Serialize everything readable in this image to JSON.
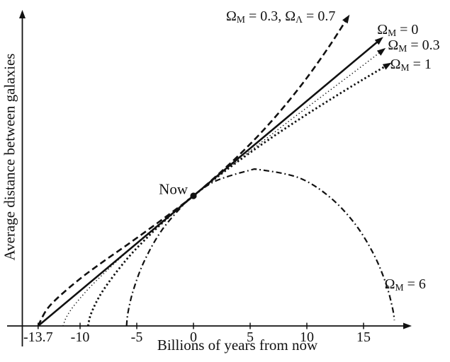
{
  "colors": {
    "ink": "#111111",
    "background": "#ffffff"
  },
  "chart_data": {
    "type": "line",
    "title": "",
    "xlabel": "Billions of years from now",
    "ylabel": "Average distance between galaxies",
    "xlim": [
      -15.1,
      19.4
    ],
    "ylim": [
      0,
      2.45
    ],
    "grid": false,
    "legend_position": "labels-at-curve-ends",
    "x_ticks": [
      {
        "value": -13.7,
        "label": "-13.7"
      },
      {
        "value": -10,
        "label": "-10"
      },
      {
        "value": -5,
        "label": "-5"
      },
      {
        "value": 0,
        "label": "0"
      },
      {
        "value": 5,
        "label": "5"
      },
      {
        "value": 10,
        "label": "10"
      },
      {
        "value": 15,
        "label": "15"
      }
    ],
    "now_marker": {
      "label": "Now",
      "t": 0,
      "a": 1.0,
      "label_anchor": {
        "t": -0.5,
        "a": 1.05,
        "align": "right"
      }
    },
    "series": [
      {
        "id": "lcdm",
        "name": "ΩM = 0.3, ΩΛ = 0.7",
        "label_segments": [
          {
            "t": "Ω"
          },
          {
            "t": "M",
            "sub": true
          },
          {
            "t": " = 0.3, "
          },
          {
            "t": "Ω"
          },
          {
            "t": "Λ",
            "sub": true
          },
          {
            "t": " = 0.7"
          }
        ],
        "style": "dashed",
        "arrow": true,
        "label_anchor": {
          "t": 7.7,
          "a": 2.375,
          "align": "center"
        },
        "points": [
          [
            -13.7,
            0
          ],
          [
            -13,
            0.118
          ],
          [
            -12,
            0.214
          ],
          [
            -10,
            0.363
          ],
          [
            -8,
            0.492
          ],
          [
            -6,
            0.614
          ],
          [
            -4,
            0.739
          ],
          [
            -2,
            0.867
          ],
          [
            0,
            1.0
          ],
          [
            2,
            1.151
          ],
          [
            4,
            1.312
          ],
          [
            6,
            1.489
          ],
          [
            8,
            1.687
          ],
          [
            10,
            1.907
          ],
          [
            12,
            2.153
          ],
          [
            13.6,
            2.37
          ]
        ]
      },
      {
        "id": "omega0",
        "name": "ΩM = 0",
        "label_segments": [
          {
            "t": "Ω"
          },
          {
            "t": "M",
            "sub": true
          },
          {
            "t": " = 0"
          }
        ],
        "style": "solid",
        "arrow": true,
        "label_anchor": {
          "t": 16.2,
          "a": 2.27,
          "align": "left"
        },
        "points": [
          [
            -13.7,
            0
          ],
          [
            16.5,
            2.204
          ]
        ]
      },
      {
        "id": "omega03",
        "name": "ΩM = 0.3",
        "label_segments": [
          {
            "t": "Ω"
          },
          {
            "t": "M",
            "sub": true
          },
          {
            "t": " = 0.3"
          }
        ],
        "style": "dotted-fine",
        "arrow": true,
        "label_anchor": {
          "t": 17.15,
          "a": 2.15,
          "align": "left"
        },
        "points": [
          [
            -11.5,
            0
          ],
          [
            -11.18,
            0.072
          ],
          [
            -10.37,
            0.174
          ],
          [
            -8.68,
            0.338
          ],
          [
            -5.58,
            0.592
          ],
          [
            -3.29,
            0.765
          ],
          [
            0,
            1.0
          ],
          [
            3.4,
            1.236
          ],
          [
            8.12,
            1.554
          ],
          [
            14.04,
            1.943
          ],
          [
            16.7,
            2.12
          ]
        ]
      },
      {
        "id": "omega1",
        "name": "ΩM = 1",
        "label_segments": [
          {
            "t": "Ω"
          },
          {
            "t": "M",
            "sub": true
          },
          {
            "t": " = 1"
          }
        ],
        "style": "dotted-bold",
        "arrow": true,
        "label_anchor": {
          "t": 17.35,
          "a": 2.005,
          "align": "left"
        },
        "points": [
          [
            -9.3,
            0
          ],
          [
            -9,
            0.101
          ],
          [
            -8,
            0.269
          ],
          [
            -6,
            0.501
          ],
          [
            -4,
            0.687
          ],
          [
            -2,
            0.851
          ],
          [
            0,
            1.0
          ],
          [
            3,
            1.205
          ],
          [
            6,
            1.394
          ],
          [
            9,
            1.57
          ],
          [
            12,
            1.737
          ],
          [
            15,
            1.897
          ],
          [
            17.2,
            2.01
          ]
        ]
      },
      {
        "id": "omega6",
        "name": "ΩM = 6",
        "label_segments": [
          {
            "t": "Ω"
          },
          {
            "t": "M",
            "sub": true
          },
          {
            "t": " = 6"
          }
        ],
        "style": "dashdot",
        "arrow": false,
        "label_anchor": {
          "t": 16.85,
          "a": 0.315,
          "align": "left"
        },
        "points": [
          [
            -5.9,
            0
          ],
          [
            -5.77,
            0.105
          ],
          [
            -5.3,
            0.276
          ],
          [
            -4.34,
            0.498
          ],
          [
            -2.79,
            0.736
          ],
          [
            -0.66,
            0.953
          ],
          [
            0.06,
            1.007
          ],
          [
            1.95,
            1.114
          ],
          [
            4.86,
            1.194
          ],
          [
            5.93,
            1.2
          ],
          [
            9.32,
            1.138
          ],
          [
            12.0,
            0.992
          ],
          [
            14.25,
            0.784
          ],
          [
            15.92,
            0.547
          ],
          [
            17.0,
            0.319
          ],
          [
            17.56,
            0.135
          ],
          [
            17.72,
            0.044
          ]
        ]
      }
    ]
  }
}
